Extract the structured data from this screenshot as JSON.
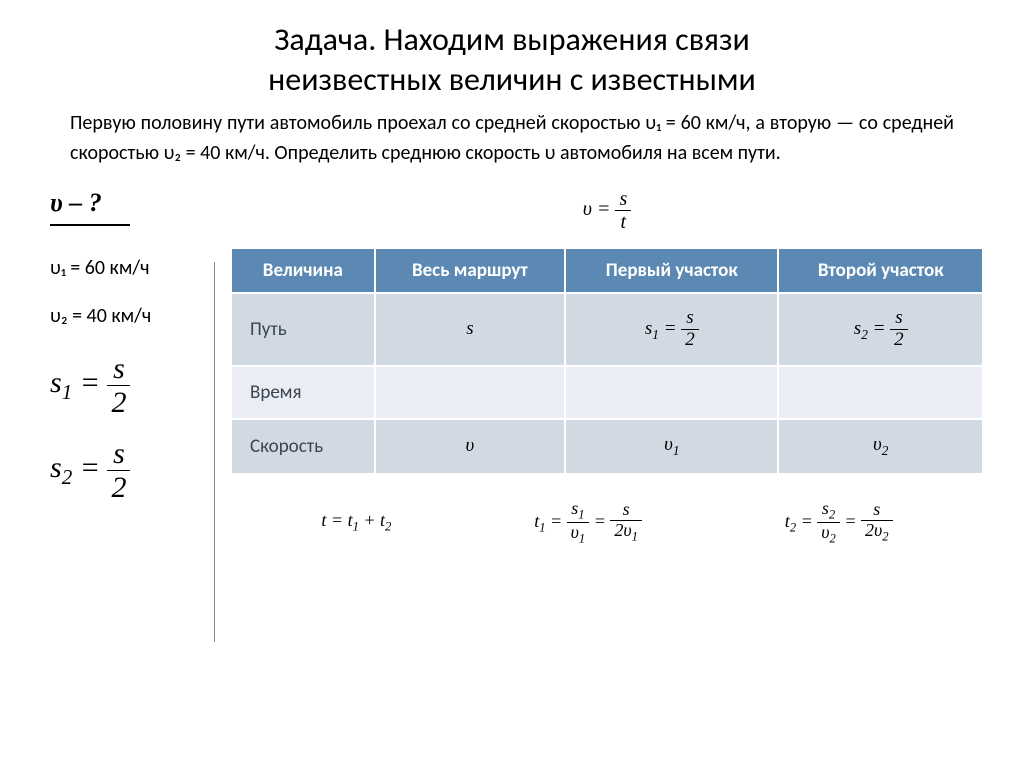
{
  "title_line1": "Задача. Находим выражения связи",
  "title_line2": "неизвестных величин с известными",
  "problem_text": "Первую половину пути автомобиль проехал со средней скоростью υ₁ = 60 км/ч, а вторую — со средней скоростью υ₂ = 40 км/ч. Определить среднюю скорость υ автомобиля на всем пути.",
  "unknown_label": "υ – ?",
  "given1": "υ₁ = 60 км/ч",
  "given2": "υ₂ = 40 км/ч",
  "eq_s1_lhs": "s₁ =",
  "eq_s2_lhs": "s₂ =",
  "frac_s_num": "s",
  "frac_s_den": "2",
  "top_formula_lhs": "υ =",
  "top_formula_num": "s",
  "top_formula_den": "t",
  "table": {
    "headers": [
      "Величина",
      "Весь маршрут",
      "Первый участок",
      "Второй участок"
    ],
    "row1_label": "Путь",
    "row1_c2": "s",
    "row1_c3_lhs": "s₁ =",
    "row1_c4_lhs": "s₂ =",
    "row2_label": "Время",
    "row3_label": "Скорость",
    "row3_c2": "υ",
    "row3_c3": "υ₁",
    "row3_c4": "υ₂"
  },
  "bottom": {
    "t_sum": "t = t₁ + t₂",
    "t1_lhs": "t₁ =",
    "t1_n1": "s₁",
    "t1_d1": "υ₁",
    "t1_n2": "s",
    "t1_d2": "2υ₁",
    "t2_lhs": "t₂ =",
    "t2_n1": "s₂",
    "t2_d1": "υ₂",
    "t2_n2": "s",
    "t2_d2": "2υ₂",
    "eq": "="
  },
  "colors": {
    "header_bg": "#5b89b4",
    "header_fg": "#ffffff",
    "band_a": "#d1d9e3",
    "band_b": "#eaedf3"
  }
}
